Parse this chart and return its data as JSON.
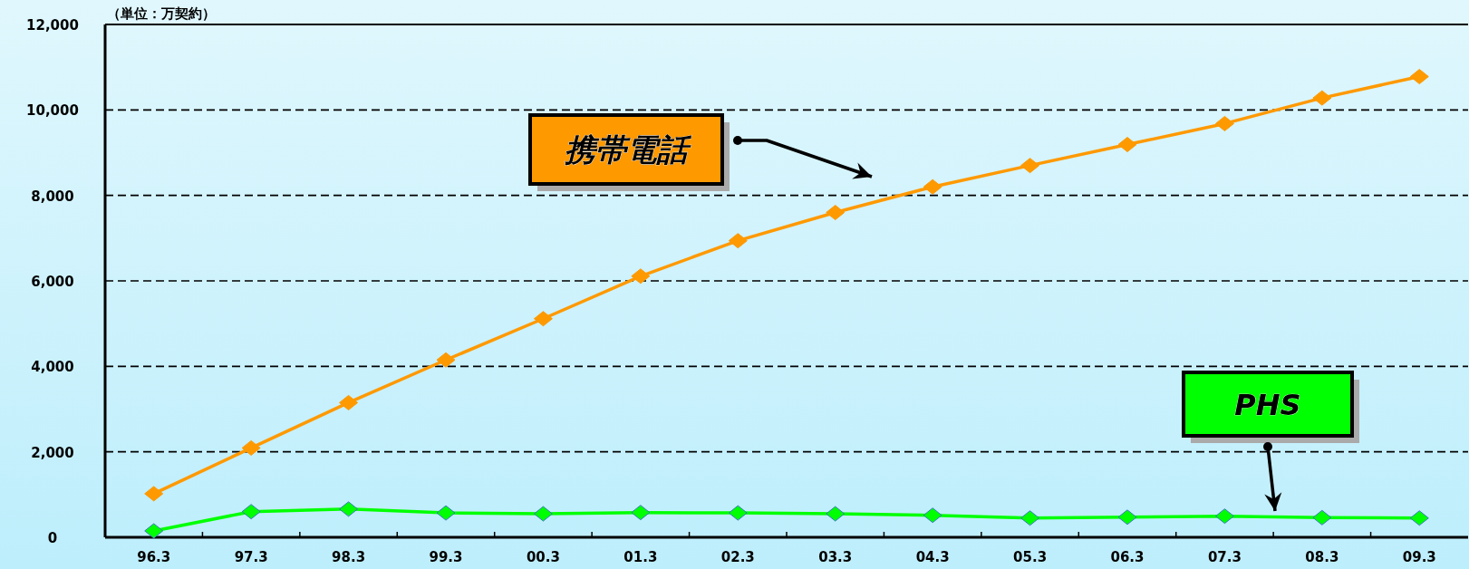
{
  "chart_data": {
    "type": "line",
    "ylabel": "（単位：万契約）",
    "categories": [
      "96.3",
      "97.3",
      "98.3",
      "99.3",
      "00.3",
      "01.3",
      "02.3",
      "03.3",
      "04.3",
      "05.3",
      "06.3",
      "07.3",
      "08.3",
      "09.3"
    ],
    "series": [
      {
        "name": "携帯電話",
        "color": "#ff9900",
        "values": [
          1020,
          2090,
          3150,
          4150,
          5115,
          6110,
          6940,
          7600,
          8200,
          8700,
          9190,
          9680,
          10280,
          10780
        ]
      },
      {
        "name": "PHS",
        "color": "#00ff00",
        "values": [
          150,
          600,
          660,
          570,
          550,
          580,
          570,
          550,
          515,
          450,
          470,
          495,
          460,
          450
        ]
      }
    ],
    "ylim": [
      0,
      12000
    ],
    "yticks": [
      0,
      {
        "value": 2000,
        "label": "2,000"
      },
      {
        "value": 4000,
        "label": "4,000"
      },
      {
        "value": 6000,
        "label": "6,000"
      },
      {
        "value": 8000,
        "label": "8,000"
      },
      {
        "value": 10000,
        "label": "10,000"
      },
      {
        "value": 12000,
        "label": "12,000"
      }
    ],
    "grid": "y",
    "marker": "diamond",
    "line_style": "solid"
  }
}
